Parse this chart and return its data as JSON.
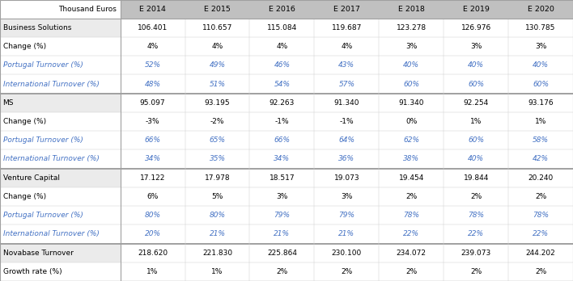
{
  "header_label": "Thousand Euros",
  "columns": [
    "E 2014",
    "E 2015",
    "E 2016",
    "E 2017",
    "E 2018",
    "E 2019",
    "E 2020"
  ],
  "rows": [
    {
      "label": "Business Solutions",
      "values": [
        "106.401",
        "110.657",
        "115.084",
        "119.687",
        "123.278",
        "126.976",
        "130.785"
      ],
      "style": "normal",
      "separator_above": false,
      "label_bg": "#EBEBEB"
    },
    {
      "label": "Change (%)",
      "values": [
        "4%",
        "4%",
        "4%",
        "4%",
        "3%",
        "3%",
        "3%"
      ],
      "style": "normal",
      "separator_above": false,
      "label_bg": "#FFFFFF"
    },
    {
      "label": "Portugal Turnover (%)",
      "values": [
        "52%",
        "49%",
        "46%",
        "43%",
        "40%",
        "40%",
        "40%"
      ],
      "style": "italic_blue",
      "separator_above": false,
      "label_bg": "#FFFFFF"
    },
    {
      "label": "International Turnover (%)",
      "values": [
        "48%",
        "51%",
        "54%",
        "57%",
        "60%",
        "60%",
        "60%"
      ],
      "style": "italic_blue",
      "separator_above": false,
      "label_bg": "#FFFFFF"
    },
    {
      "label": "MS",
      "values": [
        "95.097",
        "93.195",
        "92.263",
        "91.340",
        "91.340",
        "92.254",
        "93.176"
      ],
      "style": "normal",
      "separator_above": true,
      "label_bg": "#EBEBEB"
    },
    {
      "label": "Change (%)",
      "values": [
        "-3%",
        "-2%",
        "-1%",
        "-1%",
        "0%",
        "1%",
        "1%"
      ],
      "style": "normal",
      "separator_above": false,
      "label_bg": "#FFFFFF"
    },
    {
      "label": "Portugal Turnover (%)",
      "values": [
        "66%",
        "65%",
        "66%",
        "64%",
        "62%",
        "60%",
        "58%"
      ],
      "style": "italic_blue",
      "separator_above": false,
      "label_bg": "#FFFFFF"
    },
    {
      "label": "International Turnover (%)",
      "values": [
        "34%",
        "35%",
        "34%",
        "36%",
        "38%",
        "40%",
        "42%"
      ],
      "style": "italic_blue",
      "separator_above": false,
      "label_bg": "#FFFFFF"
    },
    {
      "label": "Venture Capital",
      "values": [
        "17.122",
        "17.978",
        "18.517",
        "19.073",
        "19.454",
        "19.844",
        "20.240"
      ],
      "style": "normal",
      "separator_above": true,
      "label_bg": "#EBEBEB"
    },
    {
      "label": "Change (%)",
      "values": [
        "6%",
        "5%",
        "3%",
        "3%",
        "2%",
        "2%",
        "2%"
      ],
      "style": "normal",
      "separator_above": false,
      "label_bg": "#FFFFFF"
    },
    {
      "label": "Portugal Turnover (%)",
      "values": [
        "80%",
        "80%",
        "79%",
        "79%",
        "78%",
        "78%",
        "78%"
      ],
      "style": "italic_blue",
      "separator_above": false,
      "label_bg": "#FFFFFF"
    },
    {
      "label": "International Turnover (%)",
      "values": [
        "20%",
        "21%",
        "21%",
        "21%",
        "22%",
        "22%",
        "22%"
      ],
      "style": "italic_blue",
      "separator_above": false,
      "label_bg": "#FFFFFF"
    },
    {
      "label": "Novabase Turnover",
      "values": [
        "218.620",
        "221.830",
        "225.864",
        "230.100",
        "234.072",
        "239.073",
        "244.202"
      ],
      "style": "normal",
      "separator_above": true,
      "label_bg": "#EBEBEB"
    },
    {
      "label": "Growth rate (%)",
      "values": [
        "1%",
        "1%",
        "2%",
        "2%",
        "2%",
        "2%",
        "2%"
      ],
      "style": "normal",
      "separator_above": false,
      "label_bg": "#FFFFFF"
    }
  ],
  "header_bg": "#C0C0C0",
  "header_text_color": "#000000",
  "label_header_bg": "#FFFFFF",
  "blue_text": "#4472C4",
  "black_text": "#000000",
  "separator_color": "#A0A0A0",
  "border_color": "#A0A0A0",
  "light_line_color": "#D0D0D0",
  "fig_bg": "#FFFFFF",
  "figw": 7.08,
  "figh": 3.48,
  "dpi": 100
}
